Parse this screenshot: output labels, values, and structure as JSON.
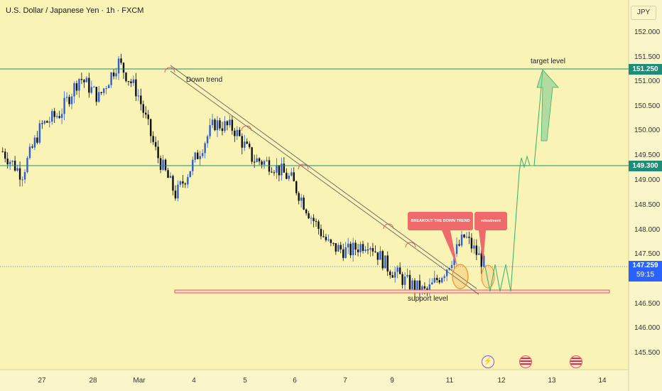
{
  "header": {
    "title": "U.S. Dollar / Japanese Yen · 1h · FXCM",
    "currency": "JPY"
  },
  "price_tags": {
    "target": "151.250",
    "breakout": "149.300",
    "current": "147.259",
    "countdown": "59:15"
  },
  "annotations": {
    "down_trend": "Down trend",
    "target_level": "target level",
    "support_level": "support level",
    "breakout": "BREAKOUT THE DOWN TREND",
    "retestment": "retestment"
  },
  "events": {
    "energy_icon": "lightning-icon",
    "flag_icon": "us-flag-icon"
  },
  "colors": {
    "background": "#f9f3b5",
    "bull": "#2f5fd6",
    "bear": "#111111",
    "level_line": "#1e8c76",
    "support_zone": "#e05a5a",
    "callout": "#ef6b6b",
    "current_price": "#2962ff"
  },
  "chart_data": {
    "type": "candlestick",
    "title": "U.S. Dollar / Japanese Yen · 1h · FXCM",
    "xlabel": "",
    "ylabel": "JPY",
    "ylim": [
      145.2,
      152.4
    ],
    "y_ticks": [
      "152.000",
      "151.500",
      "151.000",
      "150.500",
      "150.000",
      "149.500",
      "149.000",
      "148.500",
      "148.000",
      "147.500",
      "146.500",
      "146.000",
      "145.500"
    ],
    "x_ticks": [
      "27",
      "28",
      "Mar",
      "4",
      "5",
      "6",
      "7",
      "9",
      "11",
      "12",
      "13",
      "14"
    ],
    "price_path": [
      [
        "27",
        149.45
      ],
      [
        "27",
        149.0
      ],
      [
        "28",
        149.95
      ],
      [
        "28",
        150.2
      ],
      [
        "28",
        150.9
      ],
      [
        "28",
        150.5
      ],
      [
        "Mar",
        151.2
      ],
      [
        "Mar",
        150.6
      ],
      [
        "4",
        149.4
      ],
      [
        "4",
        148.6
      ],
      [
        "4",
        149.3
      ],
      [
        "5",
        150.0
      ],
      [
        "5",
        149.9
      ],
      [
        "5",
        149.3
      ],
      [
        "6",
        149.2
      ],
      [
        "6",
        148.9
      ],
      [
        "6",
        148.2
      ],
      [
        "7",
        147.6
      ],
      [
        "7",
        147.5
      ],
      [
        "9",
        147.7
      ],
      [
        "9",
        147.2
      ],
      [
        "11",
        146.9
      ],
      [
        "11",
        146.7
      ],
      [
        "11",
        147.15
      ],
      [
        "11",
        147.8
      ],
      [
        "12",
        147.26
      ]
    ],
    "levels": [
      {
        "label": "target level",
        "value": 151.25
      },
      {
        "label": "",
        "value": 149.3
      },
      {
        "label": "support level",
        "value": 146.75
      }
    ],
    "current_price": 147.259,
    "projection": [
      147.0,
      146.9,
      149.3,
      149.3,
      151.25
    ],
    "grid": false,
    "legend": "none"
  }
}
